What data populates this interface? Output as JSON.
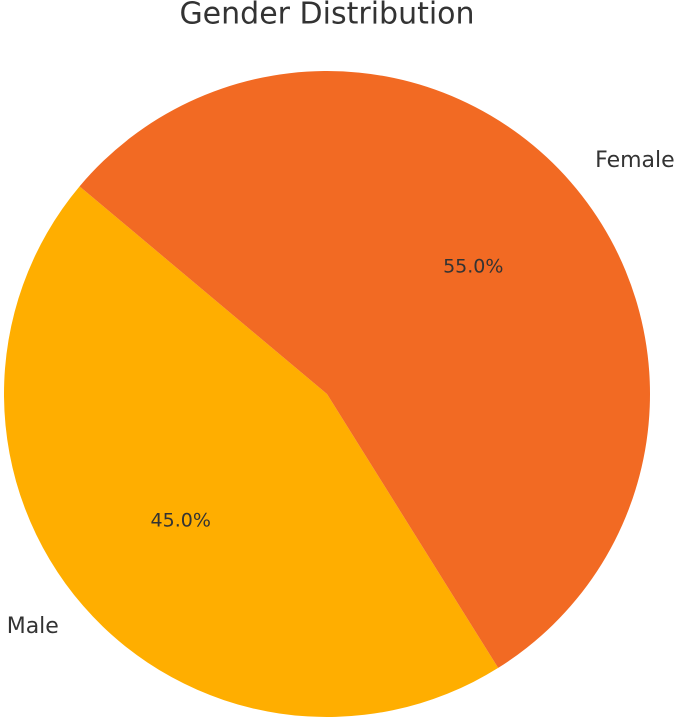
{
  "chart_data": {
    "type": "pie",
    "title": "Gender Distribution",
    "categories": [
      "Male",
      "Female"
    ],
    "values": [
      45,
      55
    ],
    "value_labels": [
      "45.0%",
      "55.0%"
    ],
    "colors": [
      "#ffae00",
      "#f26a23"
    ],
    "startangle": 140,
    "counterclockwise": true
  }
}
